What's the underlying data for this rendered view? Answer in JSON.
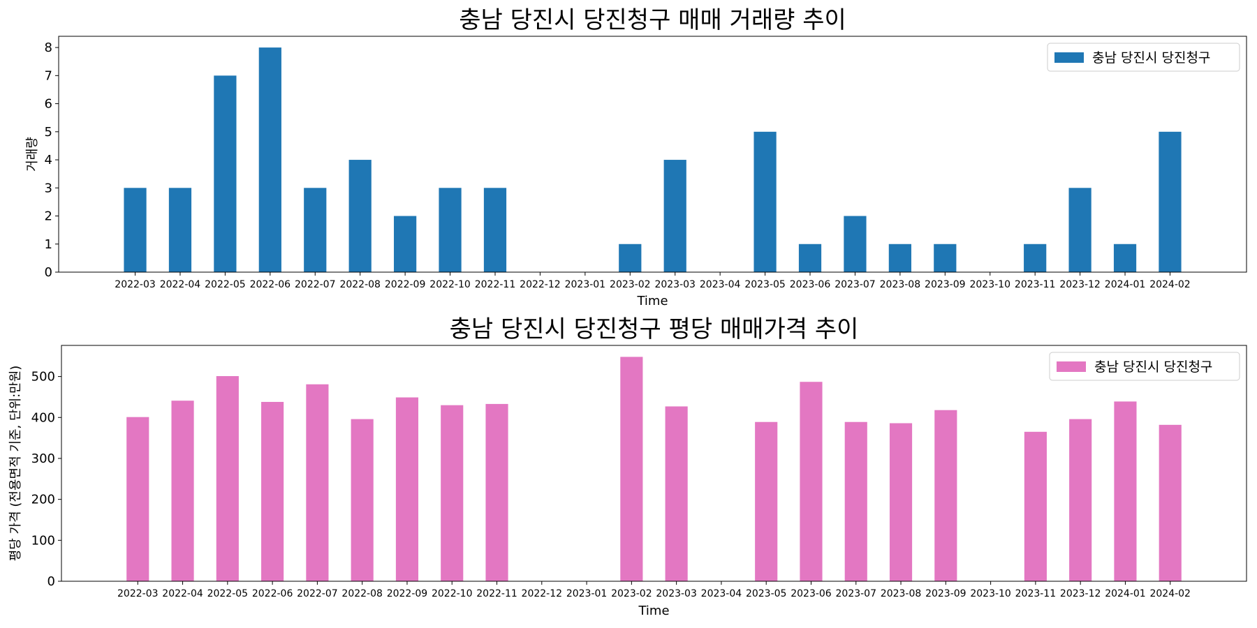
{
  "chart_data": [
    {
      "type": "bar",
      "title": "충남 당진시 당진청구 매매 거래량 추이",
      "xlabel": "Time",
      "ylabel": "거래량",
      "ylim": [
        0,
        8.4
      ],
      "yticks": [
        0,
        1,
        2,
        3,
        4,
        5,
        6,
        7,
        8
      ],
      "grid": false,
      "legend_position": "top-right",
      "color": "#1f77b4",
      "categories": [
        "2022-03",
        "2022-04",
        "2022-05",
        "2022-06",
        "2022-07",
        "2022-08",
        "2022-09",
        "2022-10",
        "2022-11",
        "2022-12",
        "2023-01",
        "2023-02",
        "2023-03",
        "2023-04",
        "2023-05",
        "2023-06",
        "2023-07",
        "2023-08",
        "2023-09",
        "2023-10",
        "2023-11",
        "2023-12",
        "2024-01",
        "2024-02"
      ],
      "series": [
        {
          "name": "충남 당진시 당진청구",
          "values": [
            3,
            3,
            7,
            8,
            3,
            4,
            2,
            3,
            3,
            0,
            0,
            1,
            4,
            0,
            5,
            1,
            2,
            1,
            1,
            0,
            1,
            3,
            1,
            5
          ]
        }
      ]
    },
    {
      "type": "bar",
      "title": "충남 당진시 당진청구 평당 매매가격 추이",
      "xlabel": "Time",
      "ylabel": "평당 가격 (전용면적 기준, 단위:만원)",
      "ylim": [
        0,
        576
      ],
      "yticks": [
        0,
        100,
        200,
        300,
        400,
        500
      ],
      "grid": false,
      "legend_position": "top-right",
      "color": "#e377c2",
      "categories": [
        "2022-03",
        "2022-04",
        "2022-05",
        "2022-06",
        "2022-07",
        "2022-08",
        "2022-09",
        "2022-10",
        "2022-11",
        "2022-12",
        "2023-01",
        "2023-02",
        "2023-03",
        "2023-04",
        "2023-05",
        "2023-06",
        "2023-07",
        "2023-08",
        "2023-09",
        "2023-10",
        "2023-11",
        "2023-12",
        "2024-01",
        "2024-02"
      ],
      "series": [
        {
          "name": "충남 당진시 당진청구",
          "values": [
            401,
            441,
            501,
            438,
            481,
            396,
            449,
            430,
            433,
            0,
            0,
            548,
            427,
            0,
            389,
            487,
            389,
            386,
            418,
            0,
            365,
            396,
            439,
            382
          ]
        }
      ]
    }
  ]
}
